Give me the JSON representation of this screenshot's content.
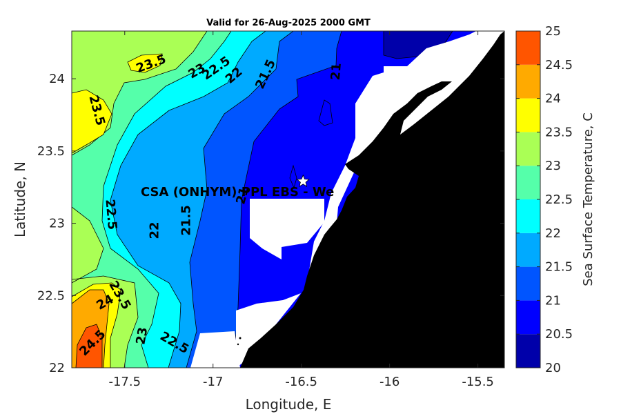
{
  "title": "Valid for 26-Aug-2025 2000 GMT",
  "map": {
    "x_label": "Longitude, E",
    "y_label": "Latitude, N",
    "lon_range": [
      -17.8,
      -15.35
    ],
    "lat_range": [
      22.0,
      24.33
    ],
    "x_ticks": [
      "-17.5",
      "-17",
      "-16.5",
      "-16",
      "-15.5"
    ],
    "y_ticks": [
      "22",
      "22.5",
      "23",
      "23.5",
      "24"
    ],
    "site_label": "CSA (ONHYM) PPL EBS  - We",
    "site_marker": {
      "lon": -16.49,
      "lat": 23.29,
      "symbol": "white-star"
    },
    "land_color": "#000000",
    "nodata_color": "#ffffff"
  },
  "colorbar": {
    "label": "Sea Surface Temperature, C",
    "tick_labels": [
      "20",
      "20.5",
      "21",
      "21.5",
      "22",
      "22.5",
      "23",
      "23.5",
      "24",
      "24.5",
      "25"
    ],
    "levels": [
      {
        "from": 20.0,
        "to": 20.5,
        "color": "#0000aa"
      },
      {
        "from": 20.5,
        "to": 21.0,
        "color": "#0000ff"
      },
      {
        "from": 21.0,
        "to": 21.5,
        "color": "#0055ff"
      },
      {
        "from": 21.5,
        "to": 22.0,
        "color": "#00aaff"
      },
      {
        "from": 22.0,
        "to": 22.5,
        "color": "#00ffff"
      },
      {
        "from": 22.5,
        "to": 23.0,
        "color": "#55ffaa"
      },
      {
        "from": 23.0,
        "to": 23.5,
        "color": "#aaff55"
      },
      {
        "from": 23.5,
        "to": 24.0,
        "color": "#ffff00"
      },
      {
        "from": 24.0,
        "to": 24.5,
        "color": "#ffaa00"
      },
      {
        "from": 24.5,
        "to": 25.0,
        "color": "#ff5500"
      }
    ]
  },
  "contour_labels": [
    {
      "text": "23.5",
      "lon": -17.35,
      "lat": 24.1
    },
    {
      "text": "23",
      "lon": -17.09,
      "lat": 24.05
    },
    {
      "text": "22.5",
      "lon": -16.98,
      "lat": 24.07
    },
    {
      "text": "22",
      "lon": -16.88,
      "lat": 24.02
    },
    {
      "text": "21.5",
      "lon": -16.7,
      "lat": 24.03
    },
    {
      "text": "21",
      "lon": -16.3,
      "lat": 24.05
    },
    {
      "text": "23.5",
      "lon": -17.66,
      "lat": 23.78
    },
    {
      "text": "22.5",
      "lon": -17.58,
      "lat": 23.06
    },
    {
      "text": "22",
      "lon": -17.33,
      "lat": 22.95
    },
    {
      "text": "21.5",
      "lon": -17.15,
      "lat": 23.02
    },
    {
      "text": "21",
      "lon": -16.83,
      "lat": 23.19
    },
    {
      "text": "23.5",
      "lon": -17.53,
      "lat": 22.5
    },
    {
      "text": "24",
      "lon": -17.61,
      "lat": 22.45
    },
    {
      "text": "23",
      "lon": -17.4,
      "lat": 22.22
    },
    {
      "text": "22.5",
      "lon": -17.22,
      "lat": 22.17
    },
    {
      "text": "24.5",
      "lon": -17.68,
      "lat": 22.17
    }
  ]
}
